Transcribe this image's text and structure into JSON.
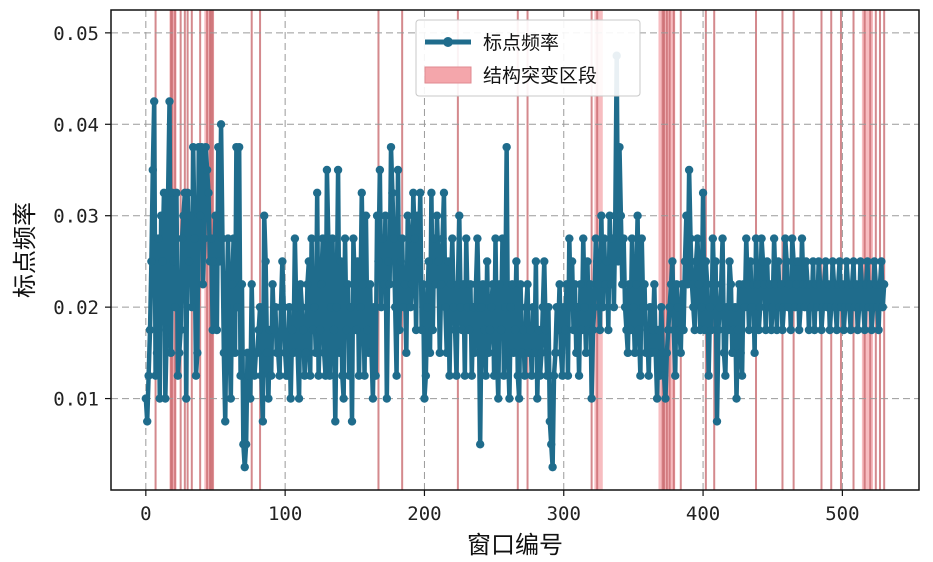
{
  "chart_data": {
    "type": "line",
    "xlabel": "窗口编号",
    "ylabel": "标点频率",
    "xlim": [
      -25,
      555
    ],
    "ylim": [
      0.0,
      0.0525
    ],
    "x_ticks": [
      0,
      100,
      200,
      300,
      400,
      500
    ],
    "y_ticks": [
      0.01,
      0.02,
      0.03,
      0.04,
      0.05
    ],
    "x_tick_labels": [
      "0",
      "100",
      "200",
      "300",
      "400",
      "500"
    ],
    "y_tick_labels": [
      "0.01",
      "0.02",
      "0.03",
      "0.04",
      "0.05"
    ],
    "grid": true,
    "legend_position": "top-center",
    "series": [
      {
        "name": "标点频率",
        "color": "#1f6c8c",
        "x_start": 0,
        "x_step": 1,
        "y": [
          0.01,
          0.0075,
          0.0125,
          0.0175,
          0.025,
          0.035,
          0.0425,
          0.0125,
          0.015,
          0.0275,
          0.01,
          0.03,
          0.025,
          0.0325,
          0.01,
          0.0175,
          0.0325,
          0.0425,
          0.015,
          0.0325,
          0.025,
          0.02,
          0.0325,
          0.0125,
          0.015,
          0.0175,
          0.0275,
          0.03,
          0.0325,
          0.01,
          0.0325,
          0.025,
          0.03,
          0.02,
          0.0375,
          0.0275,
          0.0125,
          0.015,
          0.0375,
          0.03,
          0.0375,
          0.0225,
          0.0275,
          0.0375,
          0.035,
          0.0325,
          0.025,
          0.0275,
          0.0175,
          0.025,
          0.03,
          0.0175,
          0.0375,
          0.025,
          0.04,
          0.0275,
          0.015,
          0.0075,
          0.02,
          0.0275,
          0.0175,
          0.01,
          0.0225,
          0.0275,
          0.015,
          0.0375,
          0.02,
          0.0375,
          0.0125,
          0.0225,
          0.005,
          0.0025,
          0.005,
          0.015,
          0.0125,
          0.01,
          0.0225,
          0.015,
          0.0125,
          0.015,
          0.015,
          0.0175,
          0.02,
          0.0125,
          0.0075,
          0.03,
          0.025,
          0.015,
          0.01,
          0.0175,
          0.0125,
          0.0225,
          0.0175,
          0.02,
          0.015,
          0.015,
          0.0125,
          0.02,
          0.025,
          0.02,
          0.015,
          0.0125,
          0.0125,
          0.02,
          0.01,
          0.0175,
          0.015,
          0.0275,
          0.02,
          0.015,
          0.01,
          0.0225,
          0.02,
          0.0175,
          0.0125,
          0.015,
          0.0225,
          0.025,
          0.0125,
          0.0275,
          0.0175,
          0.02,
          0.015,
          0.0325,
          0.0125,
          0.0175,
          0.0225,
          0.0275,
          0.015,
          0.0125,
          0.035,
          0.0275,
          0.0125,
          0.02,
          0.0275,
          0.0175,
          0.0075,
          0.02,
          0.035,
          0.015,
          0.025,
          0.0125,
          0.01,
          0.0275,
          0.0175,
          0.0225,
          0.0125,
          0.02,
          0.0075,
          0.0275,
          0.0225,
          0.0175,
          0.025,
          0.0125,
          0.02,
          0.0325,
          0.0225,
          0.0125,
          0.03,
          0.0175,
          0.015,
          0.0225,
          0.015,
          0.01,
          0.02,
          0.0125,
          0.03,
          0.025,
          0.035,
          0.02,
          0.0275,
          0.0225,
          0.03,
          0.01,
          0.025,
          0.0225,
          0.0375,
          0.0325,
          0.0275,
          0.02,
          0.0125,
          0.035,
          0.0175,
          0.025,
          0.0275,
          0.02,
          0.0225,
          0.015,
          0.03,
          0.0275,
          0.02,
          0.0225,
          0.0325,
          0.0275,
          0.0175,
          0.03,
          0.025,
          0.0325,
          0.0175,
          0.0225,
          0.01,
          0.0125,
          0.02,
          0.025,
          0.015,
          0.0325,
          0.0175,
          0.0275,
          0.0225,
          0.03,
          0.025,
          0.015,
          0.0225,
          0.0275,
          0.0325,
          0.02,
          0.015,
          0.025,
          0.0125,
          0.0225,
          0.0275,
          0.02,
          0.0175,
          0.0125,
          0.0225,
          0.03,
          0.02,
          0.0175,
          0.0225,
          0.0125,
          0.0275,
          0.02,
          0.0175,
          0.0225,
          0.0125,
          0.02,
          0.015,
          0.0225,
          0.0275,
          0.02,
          0.005,
          0.02,
          0.0225,
          0.0175,
          0.0125,
          0.025,
          0.015,
          0.0175,
          0.02,
          0.0225,
          0.0125,
          0.0275,
          0.015,
          0.01,
          0.0225,
          0.0175,
          0.0275,
          0.0125,
          0.02,
          0.0375,
          0.015,
          0.01,
          0.02,
          0.0225,
          0.015,
          0.0175,
          0.025,
          0.0125,
          0.01,
          0.0225,
          0.015,
          0.0175,
          0.0125,
          0.02,
          0.0225,
          0.015,
          0.0175,
          0.0125,
          0.02,
          0.015,
          0.025,
          0.01,
          0.0175,
          0.0125,
          0.015,
          0.02,
          0.025,
          0.0175,
          0.0125,
          0.02,
          0.0075,
          0.005,
          0.0025,
          0.0125,
          0.015,
          0.02,
          0.0175,
          0.0225,
          0.015,
          0.0125,
          0.02,
          0.0175,
          0.0225,
          0.0125,
          0.0275,
          0.02,
          0.025,
          0.0175,
          0.0225,
          0.015,
          0.02,
          0.0125,
          0.0225,
          0.0175,
          0.0275,
          0.02,
          0.015,
          0.025,
          0.0175,
          0.0225,
          0.01,
          0.0175,
          0.02,
          0.0275,
          0.025,
          0.0225,
          0.0175,
          0.03,
          0.02,
          0.0275,
          0.0225,
          0.025,
          0.0175,
          0.03,
          0.0225,
          0.0275,
          0.02,
          0.03,
          0.0475,
          0.025,
          0.0375,
          0.03,
          0.0225,
          0.0275,
          0.02,
          0.0175,
          0.015,
          0.0225,
          0.0175,
          0.0275,
          0.02,
          0.015,
          0.0225,
          0.03,
          0.0175,
          0.0125,
          0.0275,
          0.02,
          0.0225,
          0.015,
          0.0175,
          0.0125,
          0.02,
          0.015,
          0.0175,
          0.0225,
          0.015,
          0.01,
          0.0175,
          0.0125,
          0.02,
          0.015,
          0.0125,
          0.01,
          0.015,
          0.0175,
          0.02,
          0.0225,
          0.025,
          0.0175,
          0.0125,
          0.0225,
          0.02,
          0.0175,
          0.015,
          0.0225,
          0.0175,
          0.025,
          0.03,
          0.0225,
          0.035,
          0.0275,
          0.0225,
          0.02,
          0.0175,
          0.025,
          0.0275,
          0.0225,
          0.0175,
          0.02,
          0.0325,
          0.0175,
          0.025,
          0.0225,
          0.0125,
          0.02,
          0.0175,
          0.0275,
          0.0225,
          0.025,
          0.0075,
          0.0175,
          0.02,
          0.0225,
          0.0275,
          0.015,
          0.0125,
          0.02,
          0.0175,
          0.025,
          0.0225,
          0.015,
          0.0175,
          0.02,
          0.01,
          0.0175,
          0.0225,
          0.015,
          0.0125,
          0.0225,
          0.02,
          0.0275,
          0.0225,
          0.0175,
          0.025,
          0.02,
          0.0225,
          0.015,
          0.0275,
          0.0225,
          0.0175,
          0.02,
          0.0275,
          0.025,
          0.0225,
          0.0175,
          0.025,
          0.02,
          0.0225,
          0.0175,
          0.02,
          0.0275,
          0.0225,
          0.0175,
          0.025,
          0.02,
          0.0225,
          0.0175,
          0.02,
          0.0275,
          0.025,
          0.02,
          0.0225,
          0.0175,
          0.0275,
          0.025,
          0.02,
          0.0225,
          0.025,
          0.0175,
          0.02,
          0.0275,
          0.0225,
          0.02,
          0.025,
          0.0225,
          0.0175,
          0.0225,
          0.02,
          0.025,
          0.0175,
          0.0225,
          0.02,
          0.025,
          0.0225,
          0.0175,
          0.02,
          0.0225,
          0.025,
          0.02,
          0.0225,
          0.0175,
          0.02,
          0.025,
          0.0225,
          0.02,
          0.0175,
          0.0225,
          0.025,
          0.02,
          0.0225,
          0.0175,
          0.02,
          0.025,
          0.0225,
          0.02,
          0.0175,
          0.0225,
          0.025,
          0.02,
          0.0225,
          0.0175,
          0.02,
          0.025,
          0.0225,
          0.02,
          0.0175,
          0.0225,
          0.025,
          0.02,
          0.0225,
          0.0175,
          0.02,
          0.025,
          0.0225,
          0.02,
          0.0175,
          0.0225,
          0.025,
          0.02,
          0.0225
        ]
      }
    ],
    "regions": {
      "name": "结构突变区段",
      "color": "#f4a6ab",
      "edge_color": "#c96b70",
      "x": [
        7,
        18,
        19,
        21,
        25,
        28,
        30,
        33,
        39,
        44,
        46,
        47,
        48,
        76,
        82,
        167,
        184,
        224,
        267,
        274,
        320,
        324,
        371,
        372,
        374,
        376,
        379,
        384,
        402,
        408,
        438,
        457,
        465,
        485,
        492,
        499,
        508,
        516,
        520,
        524,
        527,
        530
      ],
      "spans": [
        [
          17,
          22
        ],
        [
          42,
          49
        ],
        [
          322,
          328
        ],
        [
          368,
          380
        ],
        [
          514,
          522
        ]
      ]
    }
  }
}
